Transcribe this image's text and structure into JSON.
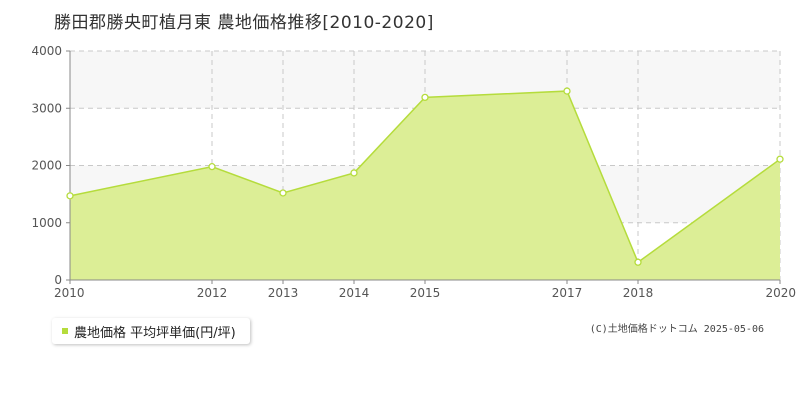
{
  "title": "勝田郡勝央町植月東 農地価格推移[2010-2020]",
  "legend_label": "農地価格 平均坪単価(円/坪)",
  "credit": "(C)土地価格ドットコム 2025-05-06",
  "colors": {
    "fill": "#dcee96",
    "line": "#b5dc3c",
    "grid": "#c8c8c8",
    "band": "#f7f7f7"
  },
  "chart_data": {
    "type": "area",
    "x": [
      2010,
      2012,
      2013,
      2014,
      2015,
      2017,
      2018,
      2020
    ],
    "series": [
      {
        "name": "農地価格 平均坪単価(円/坪)",
        "values": [
          1470,
          1980,
          1520,
          1870,
          3190,
          3300,
          310,
          2110
        ]
      }
    ],
    "x_tick_labels": [
      "2010",
      "2012",
      "2013",
      "2014",
      "2015",
      "2017",
      "2018",
      "2020"
    ],
    "y_ticks": [
      0,
      1000,
      2000,
      3000,
      4000
    ],
    "ylim": [
      0,
      4000
    ],
    "grid": true,
    "legend_position": "bottom-left"
  }
}
